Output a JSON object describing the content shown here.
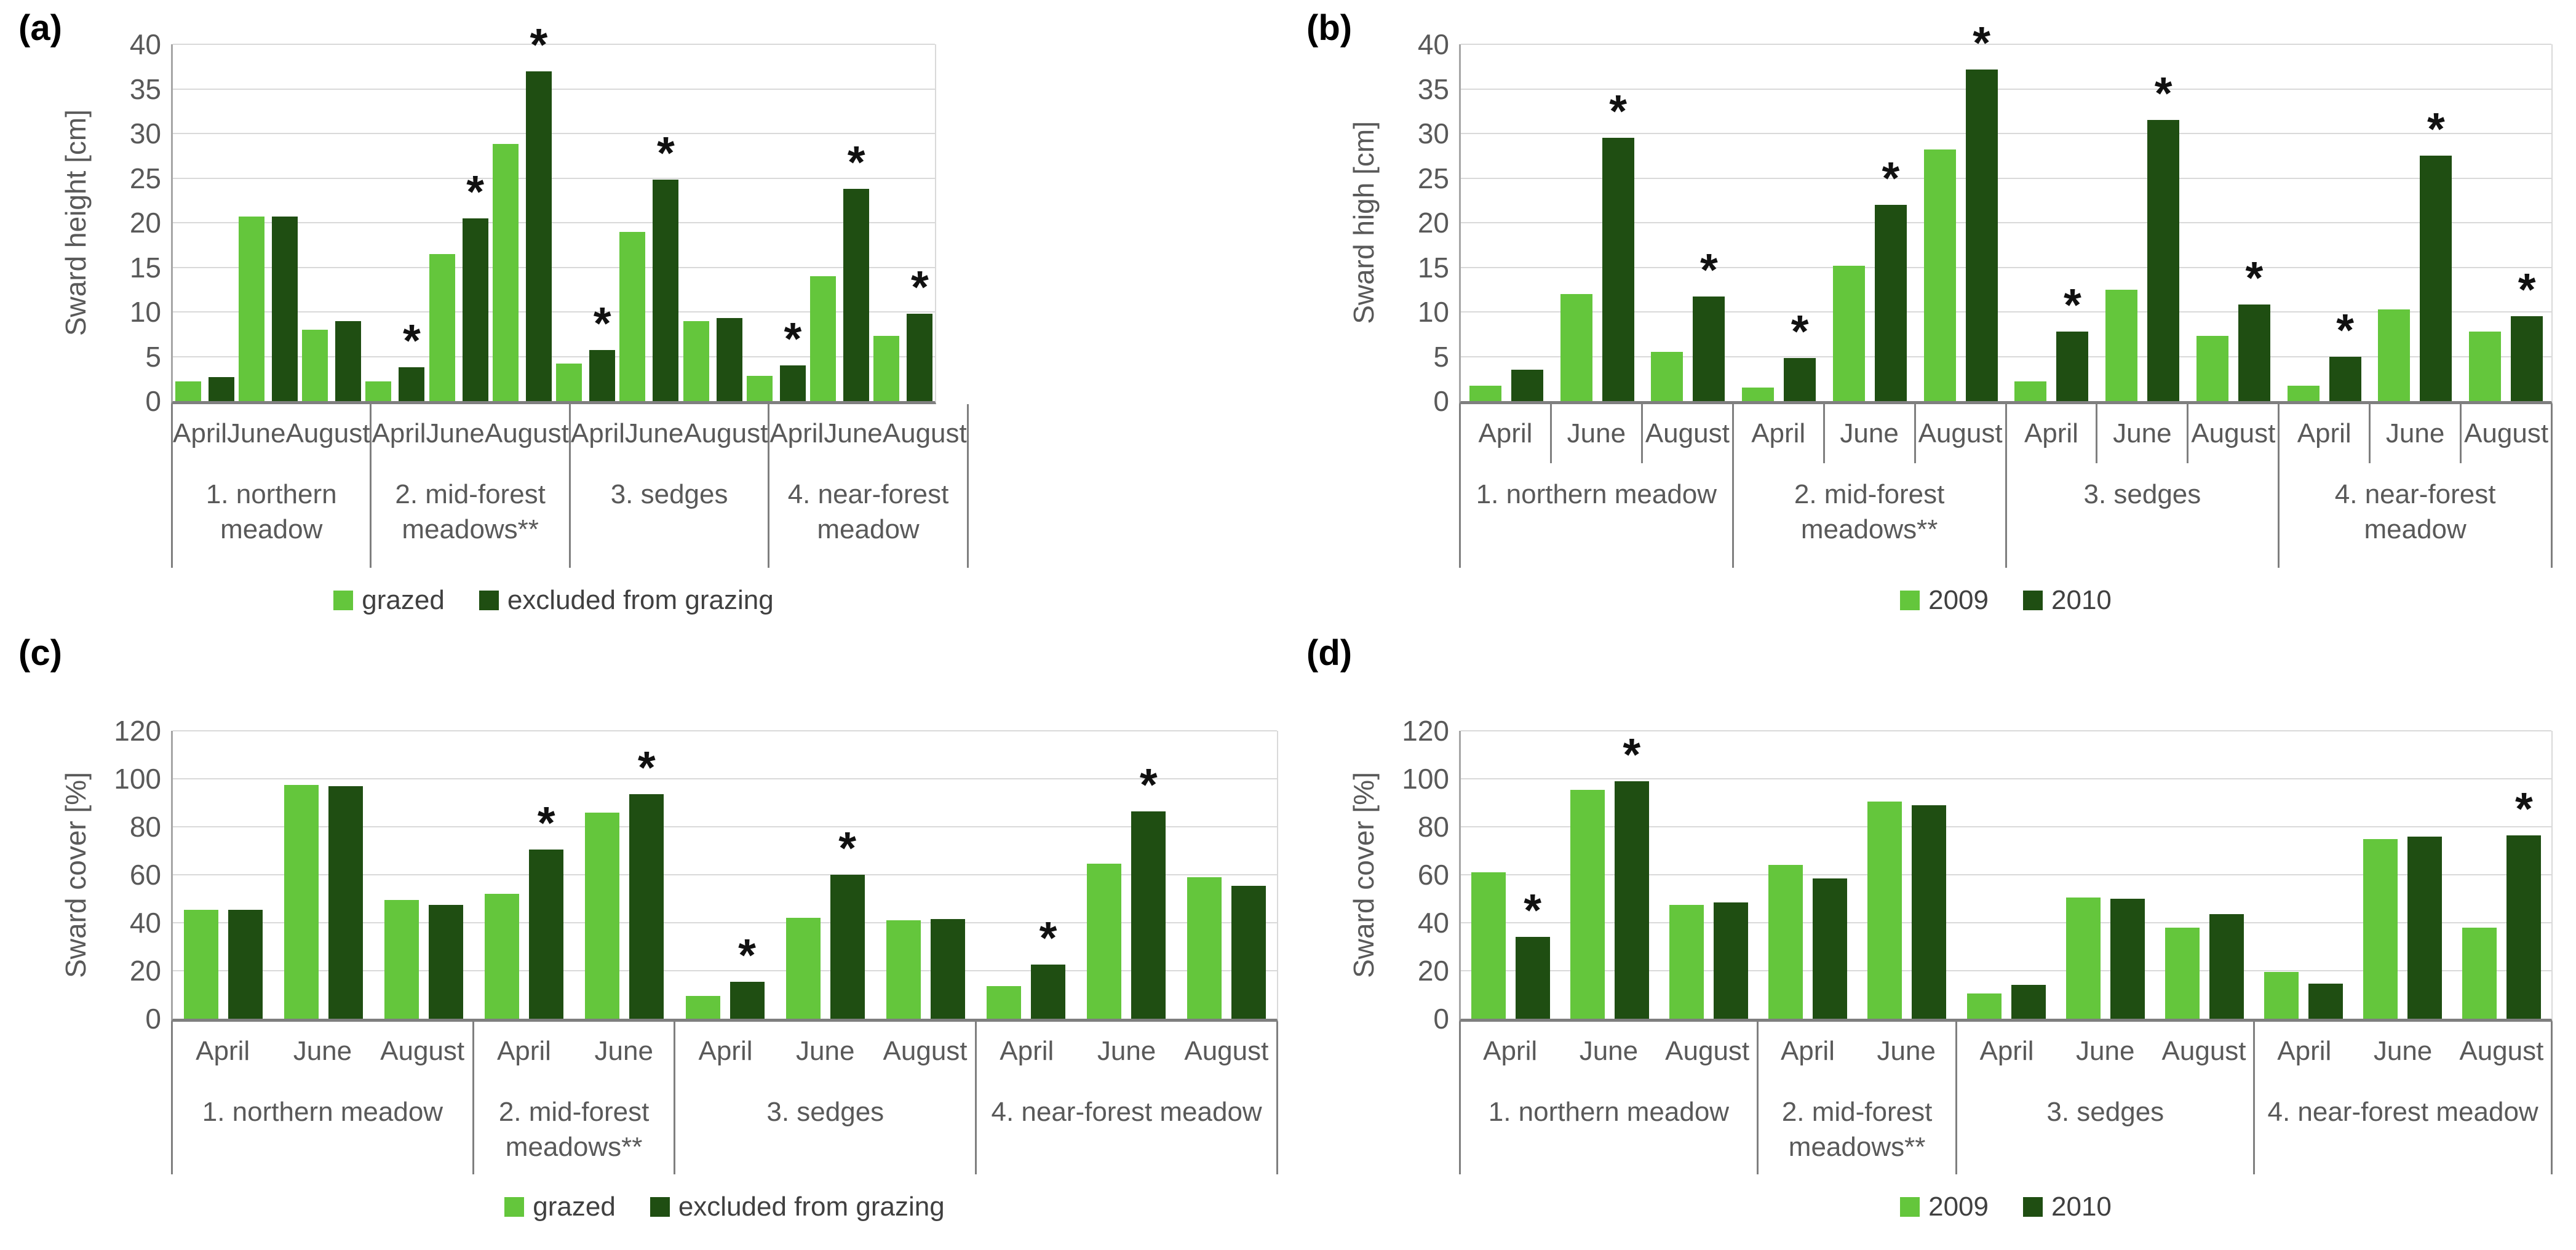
{
  "style": {
    "background": "#FFFFFF",
    "gridline_color": "#D9D9D9",
    "axis_line_color": "#7F7F7F",
    "y_axis_line_color": "#A6A6A6",
    "text_color": "#595959",
    "asterisk_color": "#111111",
    "series1_color": "#64C63C",
    "series2_color": "#1F4E12"
  },
  "chart_data": [
    {
      "panel": "(a)",
      "type": "bar",
      "title": "",
      "ylabel": "Sward height [cm]",
      "xlabel": "",
      "ylim": [
        0,
        40
      ],
      "ytick_step": 5,
      "grid": true,
      "legend_position": "bottom",
      "month_dividers": false,
      "legend": [
        "grazed",
        "excluded from grazing"
      ],
      "colors": [
        "#64C63C",
        "#1F4E12"
      ],
      "sig_note": "* above second series bar marks significant difference",
      "groups": [
        {
          "label": "1. northern meadow",
          "bars": [
            {
              "month": "April",
              "v1": 2.2,
              "v2": 2.7,
              "sig": false
            },
            {
              "month": "June",
              "v1": 20.7,
              "v2": 20.7,
              "sig": false
            },
            {
              "month": "August",
              "v1": 8,
              "v2": 9,
              "sig": false
            }
          ]
        },
        {
          "label": "2. mid-forest meadows**",
          "bars": [
            {
              "month": "April",
              "v1": 2.2,
              "v2": 3.8,
              "sig": true
            },
            {
              "month": "June",
              "v1": 16.5,
              "v2": 20.5,
              "sig": true
            },
            {
              "month": "August",
              "v1": 28.8,
              "v2": 37,
              "sig": true
            }
          ]
        },
        {
          "label": "3. sedges",
          "bars": [
            {
              "month": "April",
              "v1": 4.2,
              "v2": 5.7,
              "sig": true
            },
            {
              "month": "June",
              "v1": 19,
              "v2": 24.8,
              "sig": true
            },
            {
              "month": "August",
              "v1": 9,
              "v2": 9.3,
              "sig": false
            }
          ]
        },
        {
          "label": "4. near-forest meadow",
          "bars": [
            {
              "month": "April",
              "v1": 2.8,
              "v2": 4,
              "sig": true
            },
            {
              "month": "June",
              "v1": 14,
              "v2": 23.8,
              "sig": true
            },
            {
              "month": "August",
              "v1": 7.3,
              "v2": 9.8,
              "sig": true
            }
          ]
        }
      ]
    },
    {
      "panel": "(b)",
      "type": "bar",
      "title": "",
      "ylabel": "Sward high [cm]",
      "xlabel": "",
      "ylim": [
        0,
        40
      ],
      "ytick_step": 5,
      "grid": true,
      "legend_position": "bottom",
      "month_dividers": true,
      "legend": [
        "2009",
        "2010"
      ],
      "colors": [
        "#64C63C",
        "#1F4E12"
      ],
      "sig_note": "* above second series bar marks significant difference",
      "groups": [
        {
          "label": "1. northern meadow",
          "bars": [
            {
              "month": "April",
              "v1": 1.7,
              "v2": 3.5,
              "sig": false
            },
            {
              "month": "June",
              "v1": 12,
              "v2": 29.5,
              "sig": true
            },
            {
              "month": "August",
              "v1": 5.5,
              "v2": 11.7,
              "sig": true
            }
          ]
        },
        {
          "label": "2. mid-forest meadows**",
          "bars": [
            {
              "month": "April",
              "v1": 1.5,
              "v2": 4.8,
              "sig": true
            },
            {
              "month": "June",
              "v1": 15.2,
              "v2": 22,
              "sig": true
            },
            {
              "month": "August",
              "v1": 28.2,
              "v2": 37.2,
              "sig": true
            }
          ]
        },
        {
          "label": "3. sedges",
          "bars": [
            {
              "month": "April",
              "v1": 2.2,
              "v2": 7.8,
              "sig": true
            },
            {
              "month": "June",
              "v1": 12.5,
              "v2": 31.5,
              "sig": true
            },
            {
              "month": "August",
              "v1": 7.3,
              "v2": 10.8,
              "sig": true
            }
          ]
        },
        {
          "label": "4. near-forest meadow",
          "bars": [
            {
              "month": "April",
              "v1": 1.7,
              "v2": 5,
              "sig": true
            },
            {
              "month": "June",
              "v1": 10.3,
              "v2": 27.5,
              "sig": true
            },
            {
              "month": "August",
              "v1": 7.8,
              "v2": 9.5,
              "sig": true
            }
          ]
        }
      ]
    },
    {
      "panel": "(c)",
      "type": "bar",
      "title": "",
      "ylabel": "Sward cover [%]",
      "xlabel": "",
      "ylim": [
        0,
        120
      ],
      "ytick_step": 20,
      "grid": true,
      "legend_position": "bottom",
      "month_dividers": false,
      "legend": [
        "grazed",
        "excluded from grazing"
      ],
      "colors": [
        "#64C63C",
        "#1F4E12"
      ],
      "sig_note": "* above second series bar marks significant difference",
      "groups": [
        {
          "label": "1. northern meadow",
          "bars": [
            {
              "month": "April",
              "v1": 45.5,
              "v2": 45.5,
              "sig": false
            },
            {
              "month": "June",
              "v1": 97.5,
              "v2": 97,
              "sig": false
            },
            {
              "month": "August",
              "v1": 49.5,
              "v2": 47.5,
              "sig": false
            }
          ]
        },
        {
          "label": "2. mid-forest meadows**",
          "bars": [
            {
              "month": "April",
              "v1": 52,
              "v2": 70.5,
              "sig": true
            },
            {
              "month": "June",
              "v1": 86,
              "v2": 93.5,
              "sig": true
            }
          ]
        },
        {
          "label": "3. sedges",
          "bars": [
            {
              "month": "April",
              "v1": 9.5,
              "v2": 15.5,
              "sig": true
            },
            {
              "month": "June",
              "v1": 42,
              "v2": 60,
              "sig": true
            },
            {
              "month": "August",
              "v1": 41,
              "v2": 41.5,
              "sig": false
            }
          ]
        },
        {
          "label": "4. near-forest meadow",
          "bars": [
            {
              "month": "April",
              "v1": 13.5,
              "v2": 22.5,
              "sig": true
            },
            {
              "month": "June",
              "v1": 64.5,
              "v2": 86.5,
              "sig": true
            },
            {
              "month": "August",
              "v1": 59,
              "v2": 55.5,
              "sig": false
            }
          ]
        }
      ]
    },
    {
      "panel": "(d)",
      "type": "bar",
      "title": "",
      "ylabel": "Sward cover [%]",
      "xlabel": "",
      "ylim": [
        0,
        120
      ],
      "ytick_step": 20,
      "grid": true,
      "legend_position": "bottom",
      "month_dividers": false,
      "legend": [
        "2009",
        "2010"
      ],
      "colors": [
        "#64C63C",
        "#1F4E12"
      ],
      "sig_note": "* above second series bar marks significant difference",
      "groups": [
        {
          "label": "1. northern meadow",
          "bars": [
            {
              "month": "April",
              "v1": 61,
              "v2": 34,
              "sig": true
            },
            {
              "month": "June",
              "v1": 95.5,
              "v2": 99,
              "sig": true
            },
            {
              "month": "August",
              "v1": 47.5,
              "v2": 48.5,
              "sig": false
            }
          ]
        },
        {
          "label": "2. mid-forest meadows**",
          "bars": [
            {
              "month": "April",
              "v1": 64,
              "v2": 58.5,
              "sig": false
            },
            {
              "month": "June",
              "v1": 90.5,
              "v2": 89,
              "sig": false
            }
          ]
        },
        {
          "label": "3. sedges",
          "bars": [
            {
              "month": "April",
              "v1": 10.5,
              "v2": 14,
              "sig": false
            },
            {
              "month": "June",
              "v1": 50.5,
              "v2": 50,
              "sig": false
            },
            {
              "month": "August",
              "v1": 38,
              "v2": 43.5,
              "sig": false
            }
          ]
        },
        {
          "label": "4. near-forest meadow",
          "bars": [
            {
              "month": "April",
              "v1": 19.5,
              "v2": 14.5,
              "sig": false
            },
            {
              "month": "June",
              "v1": 75,
              "v2": 76,
              "sig": false
            },
            {
              "month": "August",
              "v1": 38,
              "v2": 76.5,
              "sig": true
            }
          ]
        }
      ]
    }
  ]
}
